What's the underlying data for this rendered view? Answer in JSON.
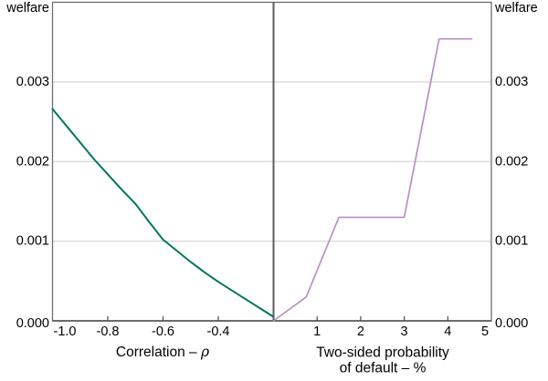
{
  "colors": {
    "left_line": "#00765C",
    "right_line": "#BA8FC5",
    "gridline": "#D6D6D6",
    "frame": "#6E6E6E",
    "divider": "#5C5C5C",
    "axis": "#4A4A4A",
    "text": "#000000",
    "background": "#FFFFFF"
  },
  "chart_data": [
    {
      "type": "line",
      "panel": "left",
      "ylabel": "welfare",
      "xlabel_prefix": "Correlation – ",
      "xlabel_symbol": "ρ",
      "xlim": [
        -1.0,
        -0.2
      ],
      "ylim": [
        0,
        0.004
      ],
      "grid": true,
      "legend": "none",
      "xticks": {
        "values": [
          -1.0,
          -0.8,
          -0.6,
          -0.4
        ],
        "labels": [
          "-1.0",
          "-0.8",
          "-0.6",
          "-0.4"
        ]
      },
      "yticks": {
        "side": "left",
        "values": [
          0,
          0.001,
          0.002,
          0.003
        ],
        "labels": [
          "0.000",
          "0.001",
          "0.002",
          "0.003"
        ]
      },
      "series": [
        {
          "name": "welfare vs correlation",
          "color": "#00765C",
          "x": [
            -1.0,
            -0.95,
            -0.9,
            -0.85,
            -0.8,
            -0.75,
            -0.7,
            -0.65,
            -0.6,
            -0.55,
            -0.5,
            -0.45,
            -0.4,
            -0.35,
            -0.3,
            -0.25,
            -0.2
          ],
          "y": [
            0.00266,
            0.00245,
            0.00224,
            0.00203,
            0.00184,
            0.00165,
            0.00147,
            0.00124,
            0.00102,
            0.00088,
            0.00074,
            0.00061,
            0.00049,
            0.00038,
            0.00027,
            0.00016,
            5e-05
          ]
        }
      ]
    },
    {
      "type": "line",
      "panel": "right",
      "ylabel": "welfare",
      "xlabel_line1": "Two-sided probability",
      "xlabel_line2": "of default – %",
      "xlim": [
        0,
        5
      ],
      "ylim": [
        0,
        0.004
      ],
      "grid": true,
      "legend": "none",
      "xticks": {
        "values": [
          1,
          2,
          3,
          4,
          5
        ],
        "labels": [
          "1",
          "2",
          "3",
          "4",
          "5"
        ]
      },
      "yticks": {
        "side": "right",
        "values": [
          0,
          0.001,
          0.002,
          0.003
        ],
        "labels": [
          "0.000",
          "0.001",
          "0.002",
          "0.003"
        ]
      },
      "series": [
        {
          "name": "welfare vs two-sided probability of default",
          "color": "#BA8FC5",
          "x": [
            0,
            0.75,
            1.5,
            3.0,
            3.8,
            4.55
          ],
          "y": [
            0,
            0.0003,
            0.0013,
            0.0013,
            0.00354,
            0.00354
          ]
        }
      ]
    }
  ]
}
